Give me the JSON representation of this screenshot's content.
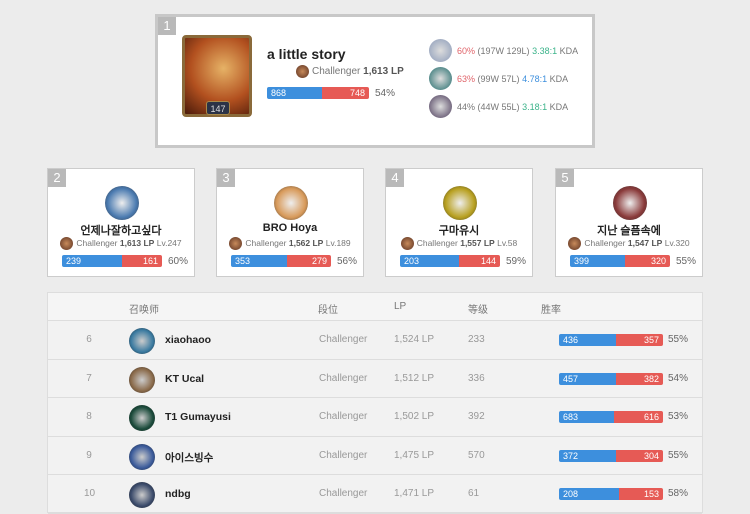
{
  "top": {
    "rank": "1",
    "name": "a little story",
    "level": "147",
    "tier": "Challenger",
    "lp": "1,613 LP",
    "wins": 868,
    "losses": 748,
    "wins_text": "868",
    "losses_text": "748",
    "winrate": "54%",
    "champions": [
      {
        "wr": "60%",
        "record": "(197W 129L)",
        "kda": "3.38:1",
        "kda_label": "KDA",
        "wr_color": "#e0646a",
        "kda_color": "#3bb38a",
        "icon_color": "#8a9ab8"
      },
      {
        "wr": "63%",
        "record": "(99W 57L)",
        "kda": "4.78:1",
        "kda_label": "KDA",
        "wr_color": "#e0646a",
        "kda_color": "#3d8fdd",
        "icon_color": "#1f6a6a"
      },
      {
        "wr": "44%",
        "record": "(44W 55L)",
        "kda": "3.18:1",
        "kda_label": "KDA",
        "wr_color": "#777777",
        "kda_color": "#3bb38a",
        "icon_color": "#4a3a5a"
      }
    ]
  },
  "cards": [
    {
      "rank": "2",
      "name": "언제나잘하고싶다",
      "tier": "Challenger",
      "lp": "1,613 LP",
      "level": "Lv.247",
      "wins": 239,
      "losses": 161,
      "wins_text": "239",
      "losses_text": "161",
      "winrate": "60%",
      "icon_color": "#4a7ab0"
    },
    {
      "rank": "3",
      "name": "BRO Hoya",
      "tier": "Challenger",
      "lp": "1,562 LP",
      "level": "Lv.189",
      "wins": 353,
      "losses": 279,
      "wins_text": "353",
      "losses_text": "279",
      "winrate": "56%",
      "icon_color": "#d89a5a"
    },
    {
      "rank": "4",
      "name": "구마유시",
      "tier": "Challenger",
      "lp": "1,557 LP",
      "level": "Lv.58",
      "wins": 203,
      "losses": 144,
      "wins_text": "203",
      "losses_text": "144",
      "winrate": "59%",
      "icon_color": "#b8a020"
    },
    {
      "rank": "5",
      "name": "지난 슬픔속에",
      "tier": "Challenger",
      "lp": "1,547 LP",
      "level": "Lv.320",
      "wins": 399,
      "losses": 320,
      "wins_text": "399",
      "losses_text": "320",
      "winrate": "55%",
      "icon_color": "#8a3a3a"
    }
  ],
  "table": {
    "headers": {
      "summoner": "召唤师",
      "tier": "段位",
      "lp": "LP",
      "level": "等级",
      "winrate": "胜率"
    },
    "rows": [
      {
        "rank": "6",
        "name": "xiaohaoo",
        "tier": "Challenger",
        "lp": "1,524 LP",
        "level": "233",
        "wins": 436,
        "losses": 357,
        "wins_text": "436",
        "losses_text": "357",
        "winrate": "55%",
        "icon_color": "#3a7aa0"
      },
      {
        "rank": "7",
        "name": "KT Ucal",
        "tier": "Challenger",
        "lp": "1,512 LP",
        "level": "336",
        "wins": 457,
        "losses": 382,
        "wins_text": "457",
        "losses_text": "382",
        "winrate": "54%",
        "icon_color": "#8a6a4a"
      },
      {
        "rank": "8",
        "name": "T1 Gumayusi",
        "tier": "Challenger",
        "lp": "1,502 LP",
        "level": "392",
        "wins": 683,
        "losses": 616,
        "wins_text": "683",
        "losses_text": "616",
        "winrate": "53%",
        "icon_color": "#1a4a3a"
      },
      {
        "rank": "9",
        "name": "아이스빙수",
        "tier": "Challenger",
        "lp": "1,475 LP",
        "level": "570",
        "wins": 372,
        "losses": 304,
        "wins_text": "372",
        "losses_text": "304",
        "winrate": "55%",
        "icon_color": "#3a5a9a"
      },
      {
        "rank": "10",
        "name": "ndbg",
        "tier": "Challenger",
        "lp": "1,471 LP",
        "level": "61",
        "wins": 208,
        "losses": 153,
        "wins_text": "208",
        "losses_text": "153",
        "winrate": "58%",
        "icon_color": "#3a4a6a"
      }
    ]
  }
}
